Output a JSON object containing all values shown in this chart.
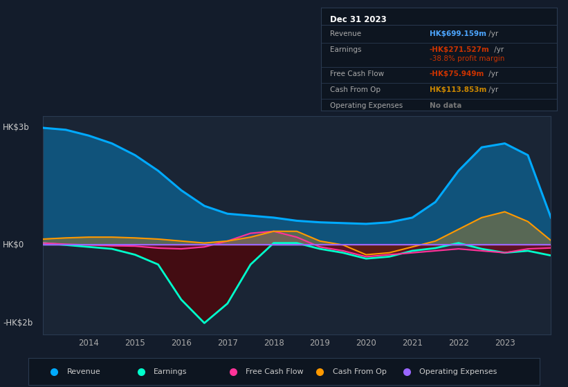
{
  "background_color": "#131c2b",
  "plot_bg_color": "#1a2535",
  "ylabel_top": "HK$3b",
  "ylabel_zero": "HK$0",
  "ylabel_bot": "-HK$2b",
  "x_years": [
    2013.0,
    2013.5,
    2014.0,
    2014.5,
    2015.0,
    2015.5,
    2016.0,
    2016.5,
    2017.0,
    2017.5,
    2018.0,
    2018.5,
    2019.0,
    2019.5,
    2020.0,
    2020.5,
    2021.0,
    2021.5,
    2022.0,
    2022.5,
    2023.0,
    2023.5,
    2024.0
  ],
  "x_ticks": [
    2014,
    2015,
    2016,
    2017,
    2018,
    2019,
    2020,
    2021,
    2022,
    2023
  ],
  "ylim": [
    -2300,
    3300
  ],
  "revenue": [
    3000,
    2950,
    2800,
    2600,
    2300,
    1900,
    1400,
    1000,
    800,
    750,
    700,
    620,
    580,
    560,
    540,
    580,
    700,
    1100,
    1900,
    2500,
    2600,
    2300,
    700
  ],
  "earnings": [
    50,
    0,
    -50,
    -100,
    -250,
    -500,
    -1400,
    -2000,
    -1500,
    -500,
    50,
    50,
    -100,
    -200,
    -350,
    -300,
    -150,
    -80,
    50,
    -100,
    -200,
    -150,
    -270
  ],
  "free_cash_flow": [
    50,
    20,
    0,
    -20,
    -30,
    -80,
    -100,
    -50,
    100,
    300,
    350,
    200,
    -50,
    -150,
    -300,
    -250,
    -200,
    -150,
    -100,
    -150,
    -200,
    -100,
    -76
  ],
  "cash_from_op": [
    150,
    180,
    200,
    200,
    180,
    150,
    100,
    50,
    100,
    200,
    350,
    350,
    100,
    0,
    -250,
    -200,
    -50,
    100,
    400,
    700,
    850,
    600,
    114
  ],
  "operating_expenses": [
    0,
    0,
    0,
    0,
    0,
    0,
    0,
    0,
    0,
    0,
    0,
    0,
    0,
    0,
    0,
    0,
    0,
    0,
    0,
    0,
    0,
    0,
    0
  ],
  "colors": {
    "revenue": "#00aaff",
    "earnings": "#00ffcc",
    "free_cash_flow": "#ff3399",
    "cash_from_op": "#ff9900",
    "operating_expenses": "#9966ff"
  },
  "legend_items": [
    "Revenue",
    "Earnings",
    "Free Cash Flow",
    "Cash From Op",
    "Operating Expenses"
  ],
  "legend_colors": [
    "#00aaff",
    "#00ffcc",
    "#ff3399",
    "#ff9900",
    "#9966ff"
  ],
  "info_box": {
    "title": "Dec 31 2023",
    "title_color": "#ffffff",
    "label_color": "#aaaaaa",
    "bg": "#0d1520",
    "border": "#2a3a50",
    "rows": [
      {
        "label": "Revenue",
        "value": "HK$699.159m",
        "suffix": " /yr",
        "value_color": "#4da6ff",
        "sub": null
      },
      {
        "label": "Earnings",
        "value": "-HK$271.527m",
        "suffix": " /yr",
        "value_color": "#cc3300",
        "sub": "-38.8% profit margin"
      },
      {
        "label": "Free Cash Flow",
        "value": "-HK$75.949m",
        "suffix": " /yr",
        "value_color": "#cc3300",
        "sub": null
      },
      {
        "label": "Cash From Op",
        "value": "HK$113.853m",
        "suffix": " /yr",
        "value_color": "#cc8800",
        "sub": null
      },
      {
        "label": "Operating Expenses",
        "value": "No data",
        "suffix": "",
        "value_color": "#777777",
        "sub": null
      }
    ]
  }
}
